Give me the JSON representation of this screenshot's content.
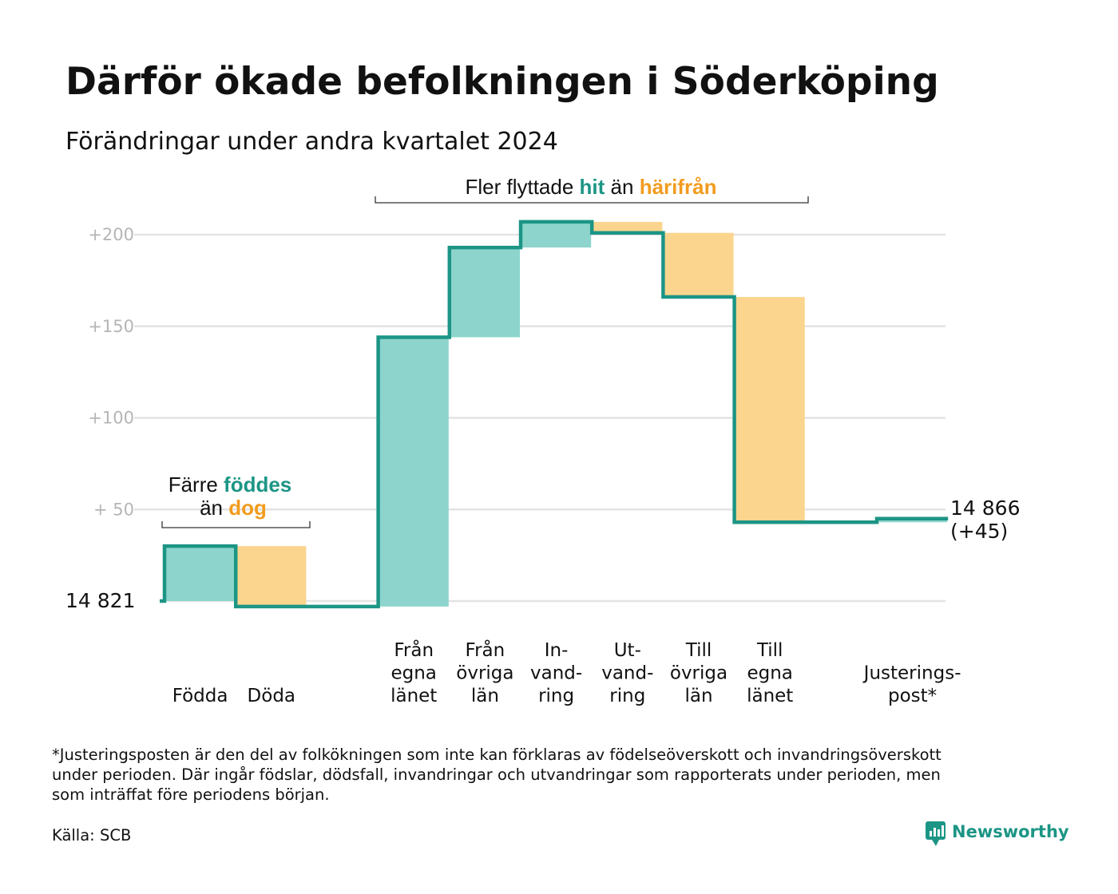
{
  "title": "Därför ökade befolkningen i Söderköping",
  "subtitle": "Förändringar under andra kvartalet 2024",
  "colors": {
    "increase": "#8dd5cc",
    "decrease": "#fbd58e",
    "line": "#1c9585",
    "highlight_green": "#1c9585",
    "highlight_orange": "#f29c1f",
    "grid": "#e3e3e3",
    "tick": "#b5b5b5"
  },
  "chart_data": {
    "type": "waterfall",
    "start": {
      "label": "14  821",
      "value": 0
    },
    "end": {
      "label_line1": "14 866",
      "label_line2": "(+45)",
      "value": 45
    },
    "ylim": [
      -10,
      240
    ],
    "yticks": [
      {
        "value": 50,
        "label": "+  50"
      },
      {
        "value": 100,
        "label": "+100"
      },
      {
        "value": 150,
        "label": "+150"
      },
      {
        "value": 200,
        "label": "+200"
      }
    ],
    "grid": true,
    "steps": [
      {
        "label": [
          "Födda"
        ],
        "from": 0,
        "to": 30,
        "kind": "increase"
      },
      {
        "label": [
          "Döda"
        ],
        "from": 30,
        "to": -3,
        "kind": "decrease"
      },
      {
        "label": [],
        "from": -3,
        "to": -3,
        "kind": "gap"
      },
      {
        "label": [
          "Från",
          "egna",
          "länet"
        ],
        "from": -3,
        "to": 144,
        "kind": "increase"
      },
      {
        "label": [
          "Från",
          "övriga",
          "län"
        ],
        "from": 144,
        "to": 193,
        "kind": "increase"
      },
      {
        "label": [
          "In-",
          "vand-",
          "ring"
        ],
        "from": 193,
        "to": 207,
        "kind": "increase"
      },
      {
        "label": [
          "Ut-",
          "vand-",
          "ring"
        ],
        "from": 207,
        "to": 201,
        "kind": "decrease"
      },
      {
        "label": [
          "Till",
          "övriga",
          "län"
        ],
        "from": 201,
        "to": 166,
        "kind": "decrease"
      },
      {
        "label": [
          "Till",
          "egna",
          "länet"
        ],
        "from": 166,
        "to": 43,
        "kind": "decrease"
      },
      {
        "label": [],
        "from": 43,
        "to": 43,
        "kind": "gap"
      },
      {
        "label": [
          "Justerings-",
          "post*"
        ],
        "from": 43,
        "to": 45,
        "kind": "increase"
      }
    ],
    "annotations": {
      "migration": {
        "text1": "Fler flyttade ",
        "hit": "hit",
        "text2": " än ",
        "harifran": "härifrån"
      },
      "natural": {
        "line1_text": "Färre ",
        "fodde": "föddes",
        "line2_text": "än ",
        "dog": "dog"
      }
    }
  },
  "footnote": [
    "*Justeringsposten är den del av folkökningen som inte kan förklaras av födelseöverskott och invandringsöverskott",
    "under perioden. Där ingår födslar, dödsfall, invandringar och utvandringar som rapporterats under perioden, men",
    "som inträffat före periodens början."
  ],
  "source": "Källa: SCB",
  "brand": {
    "name": "Newsworthy",
    "icon": "newsworthy-logo-icon"
  }
}
